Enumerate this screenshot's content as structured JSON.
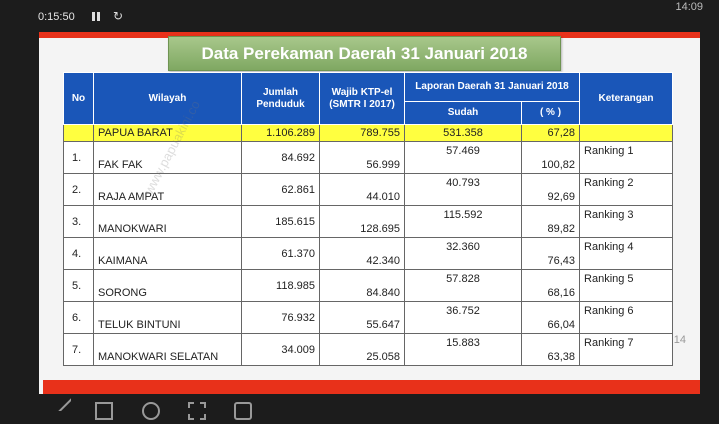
{
  "status": {
    "timer": "0:15:50",
    "clock": "14:09"
  },
  "slide": {
    "title": "Data Perekaman Daerah 31 Januari 2018",
    "number": "14"
  },
  "table": {
    "headers": {
      "no": "No",
      "wilayah": "Wilayah",
      "jumlah": "Jumlah Penduduk",
      "wajib": "Wajib KTP-el (SMTR I 2017)",
      "laporan": "Laporan Daerah 31 Januari 2018",
      "sudah": "Sudah",
      "pct": "( % )",
      "ket": "Keterangan"
    },
    "province": {
      "name": "PAPUA BARAT",
      "jumlah": "1.106.289",
      "wajib": "789.755",
      "sudah": "531.358",
      "pct": "67,28"
    },
    "rows": [
      {
        "no": "1.",
        "wilayah": "FAK FAK",
        "jumlah": "84.692",
        "wajib": "56.999",
        "sudah": "57.469",
        "pct": "100,82",
        "ket": "Ranking 1"
      },
      {
        "no": "2.",
        "wilayah": "RAJA AMPAT",
        "jumlah": "62.861",
        "wajib": "44.010",
        "sudah": "40.793",
        "pct": "92,69",
        "ket": "Ranking 2"
      },
      {
        "no": "3.",
        "wilayah": "MANOKWARI",
        "jumlah": "185.615",
        "wajib": "128.695",
        "sudah": "115.592",
        "pct": "89,82",
        "ket": "Ranking 3"
      },
      {
        "no": "4.",
        "wilayah": "KAIMANA",
        "jumlah": "61.370",
        "wajib": "42.340",
        "sudah": "32.360",
        "pct": "76,43",
        "ket": "Ranking 4"
      },
      {
        "no": "5.",
        "wilayah": "SORONG",
        "jumlah": "118.985",
        "wajib": "84.840",
        "sudah": "57.828",
        "pct": "68,16",
        "ket": "Ranking 5"
      },
      {
        "no": "6.",
        "wilayah": "TELUK BINTUNI",
        "jumlah": "76.932",
        "wajib": "55.647",
        "sudah": "36.752",
        "pct": "66,04",
        "ket": "Ranking 6"
      },
      {
        "no": "7.",
        "wilayah": "MANOKWARI SELATAN",
        "jumlah": "34.009",
        "wajib": "25.058",
        "sudah": "15.883",
        "pct": "63,38",
        "ket": "Ranking 7"
      }
    ]
  },
  "watermark": "www.papuakini.co",
  "colors": {
    "header_blue": "#1a56b8",
    "province_yellow": "#ffff40",
    "accent_red": "#e8311a",
    "title_green": "#8ab26c"
  }
}
